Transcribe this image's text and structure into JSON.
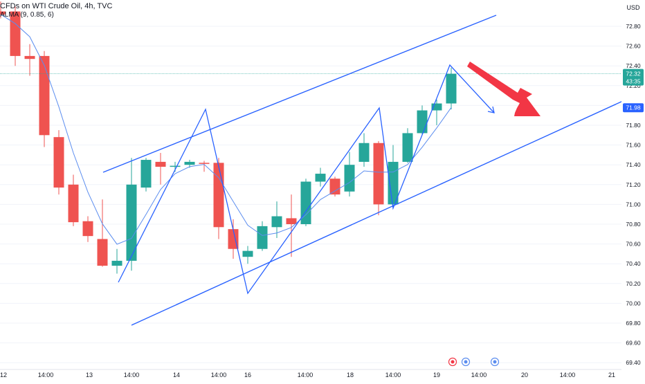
{
  "header": {
    "title": "CFDs on WTI Crude Oil, 4h, TVC",
    "indicator": "ALMA (9, 0.85, 6)"
  },
  "price_axis": {
    "currency": "USD",
    "ticks": [
      "72.80",
      "72.60",
      "72.40",
      "72.20",
      "72.00",
      "71.80",
      "71.60",
      "71.40",
      "71.20",
      "71.00",
      "70.80",
      "70.60",
      "70.40",
      "70.20",
      "70.00",
      "69.80",
      "69.60",
      "69.40"
    ],
    "current_price": "72.32",
    "countdown": "43:35",
    "target_label": "71.98"
  },
  "time_axis": {
    "labels": [
      "12",
      "14:00",
      "13",
      "14:00",
      "14",
      "14:00",
      "16",
      "14:00",
      "18",
      "14:00",
      "19",
      "14:00",
      "20",
      "14:00",
      "21"
    ]
  },
  "colors": {
    "up": "#26a69a",
    "down": "#ef5350",
    "drawing": "#2962ff",
    "arrow": "#f23645",
    "current_line": "#26a69a",
    "grid": "#f0f3fa"
  },
  "chart_data": {
    "type": "candlestick",
    "title": "CFDs on WTI Crude Oil, 4h, TVC",
    "ylim": [
      69.35,
      73.0
    ],
    "candles": [
      {
        "o": 72.95,
        "h": 73.05,
        "l": 72.88,
        "c": 72.92
      },
      {
        "o": 72.95,
        "h": 73.0,
        "l": 72.4,
        "c": 72.5
      },
      {
        "o": 72.5,
        "h": 72.62,
        "l": 72.3,
        "c": 72.47
      },
      {
        "o": 72.5,
        "h": 72.55,
        "l": 71.58,
        "c": 71.7
      },
      {
        "o": 71.68,
        "h": 71.75,
        "l": 71.1,
        "c": 71.17
      },
      {
        "o": 71.2,
        "h": 71.3,
        "l": 70.78,
        "c": 70.82
      },
      {
        "o": 70.83,
        "h": 70.88,
        "l": 70.62,
        "c": 70.68
      },
      {
        "o": 70.65,
        "h": 71.05,
        "l": 70.37,
        "c": 70.38
      },
      {
        "o": 70.38,
        "h": 70.55,
        "l": 70.3,
        "c": 70.43
      },
      {
        "o": 70.43,
        "h": 71.47,
        "l": 70.33,
        "c": 71.2
      },
      {
        "o": 71.17,
        "h": 71.47,
        "l": 71.13,
        "c": 71.45
      },
      {
        "o": 71.43,
        "h": 71.52,
        "l": 71.2,
        "c": 71.38
      },
      {
        "o": 71.39,
        "h": 71.43,
        "l": 71.33,
        "c": 71.39
      },
      {
        "o": 71.4,
        "h": 71.45,
        "l": 71.37,
        "c": 71.43
      },
      {
        "o": 71.42,
        "h": 71.44,
        "l": 71.33,
        "c": 71.41
      },
      {
        "o": 71.42,
        "h": 71.47,
        "l": 70.65,
        "c": 70.77
      },
      {
        "o": 70.75,
        "h": 70.85,
        "l": 70.45,
        "c": 70.55
      },
      {
        "o": 70.47,
        "h": 70.58,
        "l": 70.4,
        "c": 70.53
      },
      {
        "o": 70.55,
        "h": 70.83,
        "l": 70.53,
        "c": 70.78
      },
      {
        "o": 70.77,
        "h": 71.03,
        "l": 70.66,
        "c": 70.88
      },
      {
        "o": 70.86,
        "h": 71.1,
        "l": 70.47,
        "c": 70.8
      },
      {
        "o": 70.8,
        "h": 71.26,
        "l": 70.78,
        "c": 71.23
      },
      {
        "o": 71.23,
        "h": 71.37,
        "l": 71.18,
        "c": 71.31
      },
      {
        "o": 71.26,
        "h": 71.28,
        "l": 71.08,
        "c": 71.1
      },
      {
        "o": 71.13,
        "h": 71.53,
        "l": 71.08,
        "c": 71.4
      },
      {
        "o": 71.43,
        "h": 71.72,
        "l": 71.38,
        "c": 71.62
      },
      {
        "o": 71.62,
        "h": 71.64,
        "l": 70.89,
        "c": 71.0
      },
      {
        "o": 71.0,
        "h": 71.6,
        "l": 70.96,
        "c": 71.43
      },
      {
        "o": 71.43,
        "h": 71.77,
        "l": 71.42,
        "c": 71.72
      },
      {
        "o": 71.72,
        "h": 72.0,
        "l": 71.7,
        "c": 71.95
      },
      {
        "o": 71.95,
        "h": 72.06,
        "l": 71.8,
        "c": 72.02
      },
      {
        "o": 72.02,
        "h": 72.38,
        "l": 71.96,
        "c": 72.32
      }
    ]
  }
}
